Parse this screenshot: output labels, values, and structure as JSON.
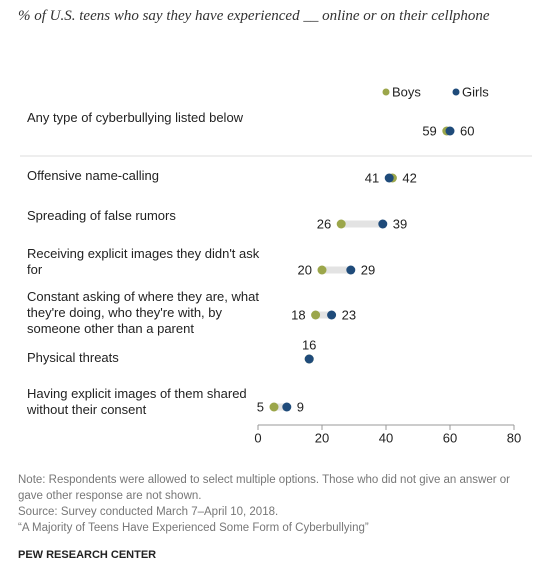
{
  "chart_data": {
    "type": "dot",
    "title": "% of U.S. teens who say they have experienced __ online or on their cellphone",
    "categories": [
      "Any type of cyberbullying listed below",
      "Offensive name-calling",
      "Spreading of false rumors",
      "Receiving explicit images they didn't ask for",
      "Constant asking of where they are, what they're doing, who they're with, by someone other than a parent",
      "Physical threats",
      "Having explicit images of them shared without their consent"
    ],
    "series": [
      {
        "name": "Boys",
        "color": "#9ba64a",
        "values": [
          59,
          42,
          26,
          20,
          18,
          16,
          5
        ]
      },
      {
        "name": "Girls",
        "color": "#1f4b7a",
        "values": [
          60,
          41,
          39,
          29,
          23,
          16,
          9
        ]
      }
    ],
    "xlim": [
      0,
      80
    ],
    "xticks": [
      0,
      20,
      40,
      60,
      80
    ],
    "note": "Note: Respondents were allowed to select multiple options. Those who did not give an answer or gave other response are not shown.",
    "source": "Source: Survey conducted March 7–April 10, 2018.",
    "report": "“A Majority of Teens Have Experienced Some Form of Cyberbullying”",
    "credit": "PEW RESEARCH CENTER"
  }
}
